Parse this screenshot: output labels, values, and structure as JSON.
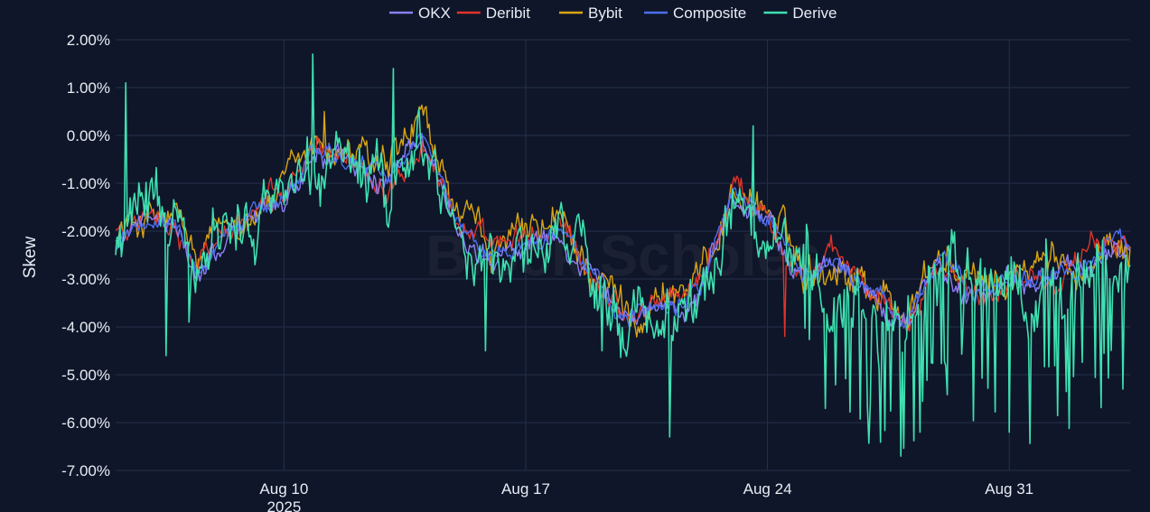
{
  "chart_data": {
    "type": "line",
    "ylabel": "Skew",
    "y_tick_labels": [
      "2.00%",
      "1.00%",
      "0.00%",
      "-1.00%",
      "-2.00%",
      "-3.00%",
      "-4.00%",
      "-5.00%",
      "-6.00%",
      "-7.00%"
    ],
    "y_tick_values": [
      2,
      1,
      0,
      -1,
      -2,
      -3,
      -4,
      -5,
      -6,
      -7
    ],
    "ylim": [
      -7,
      2
    ],
    "x_range": [
      "2025-08-05T03:00",
      "2025-09-03T12:00"
    ],
    "x_ticks": [
      {
        "date": "2025-08-10",
        "label": "Aug 10",
        "sublabel": "2025"
      },
      {
        "date": "2025-08-17",
        "label": "Aug 17",
        "sublabel": ""
      },
      {
        "date": "2025-08-24",
        "label": "Aug 24",
        "sublabel": ""
      },
      {
        "date": "2025-08-31",
        "label": "Aug 31",
        "sublabel": ""
      }
    ],
    "legend_position": "top-center",
    "grid": true,
    "watermark": "Block Scholes",
    "series": [
      {
        "name": "OKX",
        "color": "#8b7ff5"
      },
      {
        "name": "Deribit",
        "color": "#e0332a"
      },
      {
        "name": "Bybit",
        "color": "#d9a514"
      },
      {
        "name": "Composite",
        "color": "#4d6df0"
      },
      {
        "name": "Derive",
        "color": "#3ee0b0"
      }
    ],
    "composite_path": [
      [
        "2025-08-05",
        -2.2
      ],
      [
        "2025-08-06",
        -1.8
      ],
      [
        "2025-08-07",
        -2.0
      ],
      [
        "2025-08-07T12:00",
        -2.9
      ],
      [
        "2025-08-08",
        -2.3
      ],
      [
        "2025-08-09",
        -1.6
      ],
      [
        "2025-08-10",
        -1.3
      ],
      [
        "2025-08-11",
        -0.3
      ],
      [
        "2025-08-12",
        -0.5
      ],
      [
        "2025-08-13",
        -1.0
      ],
      [
        "2025-08-14",
        0.1
      ],
      [
        "2025-08-15",
        -1.8
      ],
      [
        "2025-08-16",
        -2.5
      ],
      [
        "2025-08-17",
        -2.3
      ],
      [
        "2025-08-18",
        -2.0
      ],
      [
        "2025-08-19",
        -3.0
      ],
      [
        "2025-08-20",
        -3.8
      ],
      [
        "2025-08-21",
        -3.4
      ],
      [
        "2025-08-22",
        -3.2
      ],
      [
        "2025-08-23",
        -1.2
      ],
      [
        "2025-08-24",
        -1.6
      ],
      [
        "2025-08-25",
        -2.9
      ],
      [
        "2025-08-26",
        -2.7
      ],
      [
        "2025-08-27",
        -3.2
      ],
      [
        "2025-08-28",
        -3.8
      ],
      [
        "2025-08-29",
        -2.6
      ],
      [
        "2025-08-30",
        -3.4
      ],
      [
        "2025-08-31",
        -3.0
      ],
      [
        "2025-09-01",
        -2.9
      ],
      [
        "2025-09-02",
        -2.8
      ],
      [
        "2025-09-03",
        -2.2
      ]
    ],
    "extremes": {
      "Derive": [
        [
          "2025-08-05T10:00",
          1.1
        ],
        [
          "2025-08-06T14:00",
          -4.6
        ],
        [
          "2025-08-07T06:00",
          -3.9
        ],
        [
          "2025-08-10T20:00",
          1.7
        ],
        [
          "2025-08-13T04:00",
          1.4
        ],
        [
          "2025-08-15T20:00",
          -4.5
        ],
        [
          "2025-08-19T05:00",
          -4.5
        ],
        [
          "2025-08-21T04:00",
          -6.3
        ],
        [
          "2025-08-23T14:00",
          0.2
        ],
        [
          "2025-08-28T10:00",
          -6.2
        ],
        [
          "2025-08-31T00:00",
          -6.2
        ],
        [
          "2025-09-03T07:00",
          -5.3
        ]
      ],
      "Deribit": [
        [
          "2025-08-24T12:00",
          -4.2
        ]
      ],
      "Bybit": [
        [
          "2025-08-11T04:00",
          0.5
        ],
        [
          "2025-08-13T22:00",
          0.6
        ]
      ]
    }
  }
}
